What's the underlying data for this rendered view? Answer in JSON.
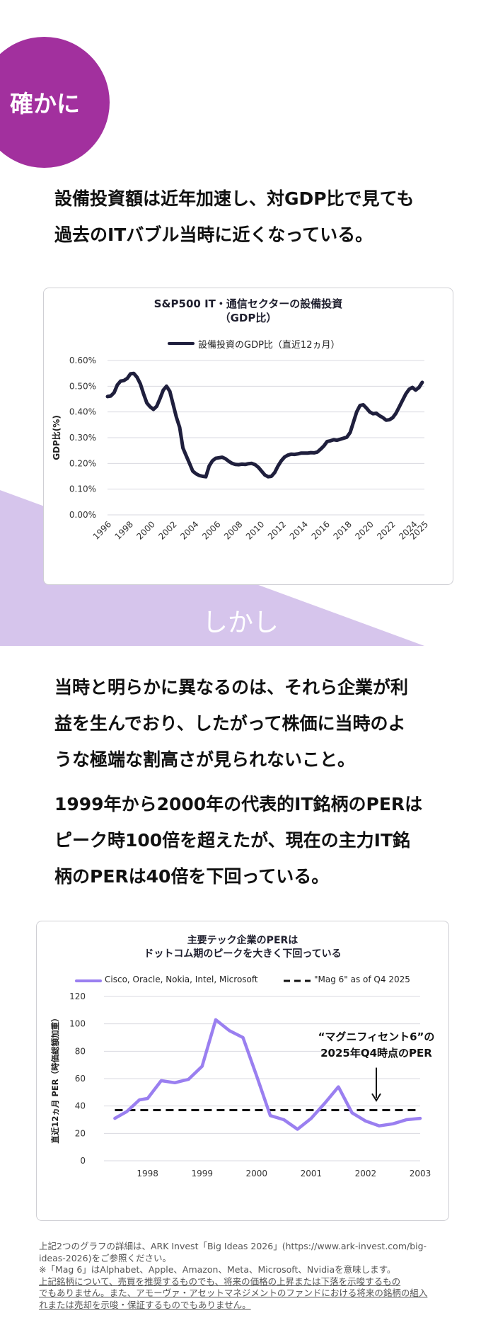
{
  "badge_1": "確かに",
  "badge_2": "しかし",
  "intro_text": {
    "line1": "設備投資額は近年加速し、対GDP比で見ても",
    "line2": "過去のITバブル当時に近くなっている。"
  },
  "body_text_1": {
    "line1": "当時と明らかに異なるのは、それら企業が利",
    "line2": "益を生んでおり、したがって株価に当時のよ",
    "line3": "うな極端な割高さが見られないこと。"
  },
  "body_text_2": {
    "line1": "1999年から2000年の代表的IT銘柄のPERは",
    "line2": "ピーク時100倍を超えたが、現在の主力IT銘",
    "line3": "柄のPERは40倍を下回っている。"
  },
  "colors": {
    "purple": "#a2309e",
    "lavender": "#d6c5ec",
    "navy": "#1f1f3d",
    "violet": "#9a7ff0"
  },
  "chart_data": [
    {
      "type": "line",
      "title_line1": "S&P500 IT・通信セクターの設備投資",
      "title_line2": "（GDP比）",
      "ylabel": "GDP比(%)",
      "legend": "設備投資のGDP比（直近12ヵ月）",
      "ylim": [
        0,
        0.6
      ],
      "xlim": [
        1996,
        2025
      ],
      "yticks": [
        "0.00%",
        "0.10%",
        "0.20%",
        "0.30%",
        "0.40%",
        "0.50%",
        "0.60%"
      ],
      "xticks": [
        "1996",
        "1998",
        "2000",
        "2002",
        "2004",
        "2006",
        "2008",
        "2010",
        "2012",
        "2014",
        "2016",
        "2018",
        "2020",
        "2022",
        "2024",
        "2025"
      ],
      "series": [
        {
          "x": [
            1996,
            1996.3,
            1996.6,
            1996.9,
            1997.2,
            1997.5,
            1997.8,
            1998.1,
            1998.4,
            1998.7,
            1999.0,
            1999.3,
            1999.6,
            1999.9,
            2000.2,
            2000.5,
            2000.8,
            2001.1,
            2001.4,
            2001.7,
            2002.0,
            2002.3,
            2002.6,
            2002.9,
            2003.2,
            2003.5,
            2003.8,
            2004.1,
            2004.4,
            2004.7,
            2005.0,
            2005.3,
            2005.6,
            2005.9,
            2006.2,
            2006.5,
            2006.8,
            2007.1,
            2007.4,
            2007.7,
            2008.0,
            2008.3,
            2008.6,
            2008.9,
            2009.2,
            2009.5,
            2009.8,
            2010.1,
            2010.4,
            2010.7,
            2011.0,
            2011.3,
            2011.6,
            2011.9,
            2012.2,
            2012.5,
            2012.8,
            2013.1,
            2013.4,
            2013.7,
            2014.0,
            2014.3,
            2014.6,
            2014.9,
            2015.2,
            2015.5,
            2015.8,
            2016.1,
            2016.4,
            2016.7,
            2017.0,
            2017.3,
            2017.6,
            2017.9,
            2018.2,
            2018.5,
            2018.8,
            2019.1,
            2019.4,
            2019.7,
            2020.0,
            2020.3,
            2020.6,
            2020.9,
            2021.2,
            2021.5,
            2021.8,
            2022.1,
            2022.4,
            2022.7,
            2023.0,
            2023.3,
            2023.6,
            2023.9,
            2024.2,
            2024.5,
            2024.8
          ],
          "values": [
            0.46,
            0.462,
            0.475,
            0.505,
            0.52,
            0.522,
            0.53,
            0.548,
            0.55,
            0.535,
            0.51,
            0.47,
            0.435,
            0.42,
            0.41,
            0.422,
            0.452,
            0.485,
            0.5,
            0.48,
            0.43,
            0.38,
            0.34,
            0.26,
            0.23,
            0.2,
            0.17,
            0.16,
            0.153,
            0.15,
            0.148,
            0.19,
            0.21,
            0.22,
            0.222,
            0.224,
            0.218,
            0.208,
            0.2,
            0.196,
            0.195,
            0.197,
            0.196,
            0.199,
            0.2,
            0.195,
            0.185,
            0.17,
            0.155,
            0.148,
            0.15,
            0.165,
            0.19,
            0.21,
            0.225,
            0.232,
            0.236,
            0.235,
            0.237,
            0.24,
            0.24,
            0.24,
            0.242,
            0.241,
            0.244,
            0.255,
            0.268,
            0.285,
            0.288,
            0.292,
            0.29,
            0.294,
            0.298,
            0.302,
            0.32,
            0.36,
            0.4,
            0.425,
            0.428,
            0.415,
            0.4,
            0.393,
            0.395,
            0.385,
            0.378,
            0.368,
            0.37,
            0.378,
            0.395,
            0.42,
            0.445,
            0.47,
            0.488,
            0.495,
            0.485,
            0.495,
            0.515
          ]
        }
      ]
    },
    {
      "type": "line",
      "title_line1": "主要テック企業のPERは",
      "title_line2": "ドットコム期のピークを大きく下回っている",
      "ylabel": "直近12ヵ月 PER（時価総額加重）",
      "ylim": [
        0,
        120
      ],
      "xlim": [
        1997.2,
        2003.0
      ],
      "yticks": [
        "0",
        "20",
        "40",
        "60",
        "80",
        "100",
        "120"
      ],
      "xticks": [
        "1998",
        "1999",
        "2000",
        "2001",
        "2002",
        "2003"
      ],
      "annotation_line1": "“マグニフィセント6”の",
      "annotation_line2": "2025年Q4時点のPER",
      "series": [
        {
          "name": "Cisco, Oracle, Nokia, Intel, Microsoft",
          "x": [
            1997.4,
            1997.62,
            1997.85,
            1998.0,
            1998.25,
            1998.5,
            1998.75,
            1999.0,
            1999.25,
            1999.5,
            1999.75,
            2000.0,
            2000.25,
            2000.5,
            2000.75,
            2001.0,
            2001.25,
            2001.5,
            2001.75,
            2002.0,
            2002.25,
            2002.5,
            2002.75,
            2003.0
          ],
          "values": [
            31,
            36,
            44.5,
            45.5,
            58.5,
            57,
            59.5,
            69,
            103,
            95,
            90,
            62,
            33,
            30,
            23,
            31,
            42,
            54,
            35,
            29,
            25.5,
            27,
            30,
            31
          ]
        },
        {
          "name": "\"Mag 6\" as of Q4 2025",
          "x": [
            1997.4,
            2003.0
          ],
          "values": [
            37,
            37
          ]
        }
      ]
    }
  ],
  "footnotes": {
    "line1": "上記2つのグラフの詳細は、ARK Invest「Big Ideas 2026」(https://www.ark-invest.com/big-",
    "line2": "ideas-2026)をご参照ください。",
    "line3": "※「Mag 6」はAlphabet、Apple、Amazon、Meta、Microsoft、Nvidiaを意味します。",
    "line4": "上記銘柄について、売買を推奨するものでも、将来の価格の上昇または下落を示唆するもの",
    "line5": "でもありません。また、アモーヴァ・アセットマネジメントのファンドにおける将来の銘柄の組入",
    "line6": "れまたは売却を示唆・保証するものでもありません。"
  }
}
